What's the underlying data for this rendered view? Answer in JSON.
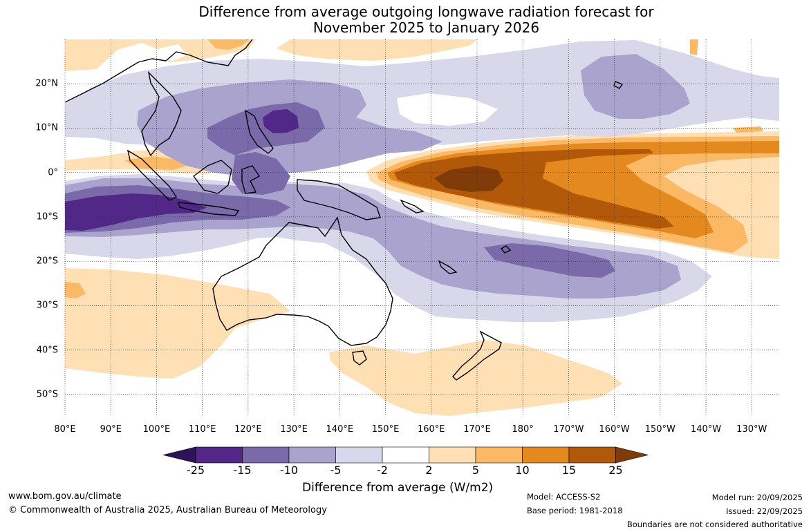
{
  "title": {
    "line1": "Difference from average outgoing longwave radiation forecast for",
    "line2": "November 2025 to January 2026"
  },
  "map": {
    "longitude_labels": [
      "80°E",
      "90°E",
      "100°E",
      "110°E",
      "120°E",
      "130°E",
      "140°E",
      "150°E",
      "160°E",
      "170°E",
      "180°",
      "170°W",
      "160°W",
      "150°W",
      "140°W",
      "130°W"
    ],
    "latitude_labels": [
      "20°N",
      "10°N",
      "0°",
      "10°S",
      "20°S",
      "30°S",
      "40°S",
      "50°S"
    ],
    "extent": {
      "lon_min": 80,
      "lon_max": 236,
      "lat_min": -55,
      "lat_max": 30
    },
    "gridlines": true
  },
  "colorbar": {
    "ticks": [
      "-25",
      "-15",
      "-10",
      "-5",
      "-2",
      "2",
      "5",
      "10",
      "15",
      "25"
    ],
    "colors": [
      "#2d1457",
      "#512888",
      "#7a6aaa",
      "#aaa3ce",
      "#d8d8ea",
      "#ffffff",
      "#fee0b4",
      "#fcb965",
      "#e3891e",
      "#b15909",
      "#7f3b08"
    ],
    "title": "Difference from average (W/m2)"
  },
  "footer": {
    "website": "www.bom.gov.au/climate",
    "copyright": "© Commonwealth of Australia 2025, Australian Bureau of Meteorology",
    "model": "Model: ACCESS-S2",
    "base_period": "Base period: 1981-2018",
    "model_run": "Model run: 20/09/2025",
    "issued": "Issued: 22/09/2025",
    "disclaimer": "Boundaries are not considered authoritative"
  }
}
